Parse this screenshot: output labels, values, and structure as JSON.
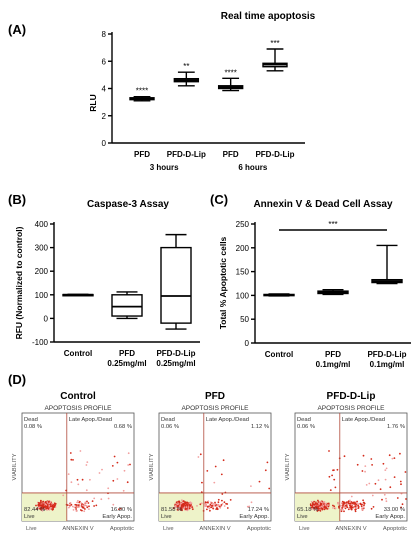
{
  "chart_data": [
    {
      "panel": "(A)",
      "type": "box",
      "title": "Real  time apoptosis",
      "ylabel": "RLU",
      "ylim": [
        0,
        8
      ],
      "yticks": [
        0,
        2,
        4,
        6,
        8
      ],
      "categories": [
        "PFD",
        "PFD-D-Lip",
        "PFD",
        "PFD-D-Lip"
      ],
      "groups": [
        {
          "label": "3 hours",
          "members": [
            0,
            1
          ]
        },
        {
          "label": "6 hours",
          "members": [
            2,
            3
          ]
        }
      ],
      "boxes": [
        {
          "min": 3.1,
          "q1": 3.18,
          "median": 3.25,
          "q3": 3.32,
          "max": 3.4,
          "sig": "****"
        },
        {
          "min": 4.2,
          "q1": 4.5,
          "median": 4.62,
          "q3": 4.72,
          "max": 5.2,
          "sig": "**"
        },
        {
          "min": 3.85,
          "q1": 4.0,
          "median": 4.1,
          "q3": 4.2,
          "max": 4.75,
          "sig": "****"
        },
        {
          "min": 5.3,
          "q1": 5.6,
          "median": 5.75,
          "q3": 5.85,
          "max": 6.9,
          "sig": "***"
        }
      ]
    },
    {
      "panel": "(B)",
      "type": "box",
      "title": "Caspase-3 Assay",
      "ylabel": "RFU (Normalized to control)",
      "ylim": [
        -100,
        400
      ],
      "yticks": [
        -100,
        0,
        100,
        200,
        300,
        400
      ],
      "categories": [
        "Control",
        "PFD\n0.25mg/ml",
        "PFD-D-Lip\n0.25mg/ml"
      ],
      "boxes": [
        {
          "min": 98,
          "q1": 99,
          "median": 100,
          "q3": 101,
          "max": 102
        },
        {
          "min": 0,
          "q1": 10,
          "median": 50,
          "q3": 100,
          "max": 112
        },
        {
          "min": -45,
          "q1": -20,
          "median": 95,
          "q3": 300,
          "max": 355
        }
      ]
    },
    {
      "panel": "(C)",
      "type": "box",
      "title": "Annexin V & Dead Cell Assay",
      "ylabel": "Total % Apoptotic cells",
      "ylim": [
        0,
        250
      ],
      "yticks": [
        0,
        50,
        100,
        150,
        200,
        250
      ],
      "categories": [
        "Control",
        "PFD\n0.1mg/ml",
        "PFD-D-Lip\n0.1mg/ml"
      ],
      "boxes": [
        {
          "min": 99,
          "q1": 100,
          "median": 101,
          "q3": 102,
          "max": 103
        },
        {
          "min": 102,
          "q1": 104,
          "median": 107,
          "q3": 109,
          "max": 112
        },
        {
          "min": 125,
          "q1": 127,
          "median": 130,
          "q3": 133,
          "max": 205
        }
      ],
      "significance": {
        "from": 0,
        "to": 2,
        "label": "***"
      }
    },
    {
      "panel": "(D)",
      "type": "scatter",
      "profile_label": "APOPTOSIS PROFILE",
      "xlabel": "ANNEXIN V",
      "ylabel": "VIABILITY",
      "x_sub_left": "Live",
      "x_sub_right": "Apoptotic",
      "quadrant_names": {
        "ul": "Dead",
        "ur": "Late Apop./Dead",
        "ll": "Live",
        "lr": "Early Apop."
      },
      "plots": [
        {
          "title": "Control",
          "ul": "0.08 %",
          "ur": "0.68 %",
          "ll": "82.44 %",
          "lr": "16.80 %"
        },
        {
          "title": "PFD",
          "ul": "0.06 %",
          "ur": "1.12 %",
          "ll": "81.58 %",
          "lr": "17.24 %"
        },
        {
          "title": "PFD-D-Lip",
          "ul": "0.06 %",
          "ur": "1.76 %",
          "ll": "65.18 %",
          "lr": "33.00 %"
        }
      ]
    }
  ],
  "colors": {
    "box": "#000000",
    "gate": "#b04a3a",
    "dots_dense": "#d42a1a",
    "dots_light": "#f2a0a0",
    "live_zone": "#eef3c9"
  }
}
